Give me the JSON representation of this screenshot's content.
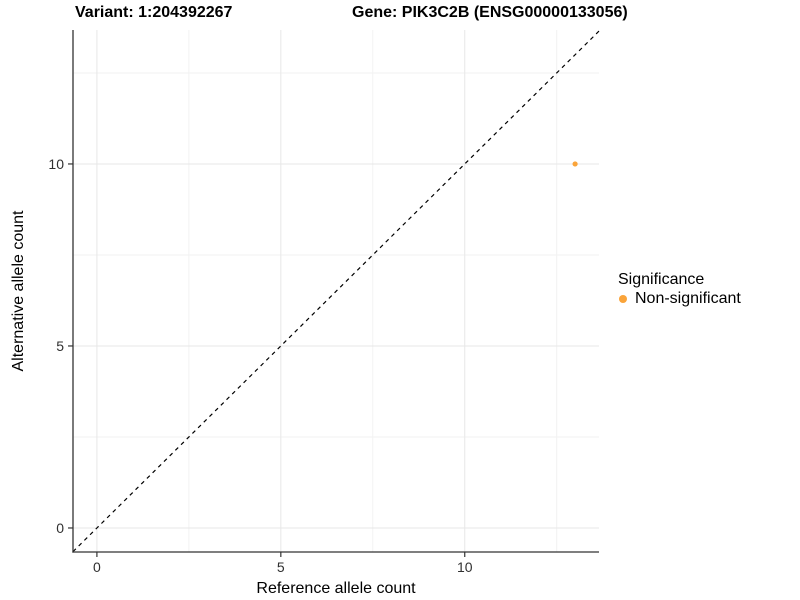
{
  "titles": {
    "variant": "Variant: 1:204392267",
    "gene": "Gene: PIK3C2B (ENSG00000133056)"
  },
  "chart_data": {
    "type": "scatter",
    "title_left": "Variant: 1:204392267",
    "title_right": "Gene: PIK3C2B (ENSG00000133056)",
    "xlabel": "Reference allele count",
    "ylabel": "Alternative allele count",
    "xlim": [
      -0.65,
      13.65
    ],
    "ylim": [
      -0.66,
      13.68
    ],
    "x_ticks": [
      0,
      5,
      10
    ],
    "y_ticks": [
      0,
      5,
      10
    ],
    "x_minor_ticks": [
      2.5,
      7.5,
      12.5
    ],
    "y_minor_ticks": [
      2.5,
      7.5,
      12.5
    ],
    "grid": "major and minor, light gray on white",
    "points": [
      {
        "x": 13,
        "y": 10,
        "series": "Non-significant"
      }
    ],
    "reference_line": {
      "type": "identity",
      "equation": "y = x",
      "style": "dashed",
      "color": "#000000"
    },
    "legend": {
      "title": "Significance",
      "position": "right",
      "items": [
        {
          "label": "Non-significant",
          "color": "#FAA43A"
        }
      ]
    }
  },
  "colors": {
    "point": "#FAA43A",
    "axis_line": "#333333",
    "tick_label": "#303030",
    "grid_major": "#E7E7E7",
    "grid_minor": "#F2F2F2",
    "dashed_line": "#000000",
    "background": "#FFFFFF"
  }
}
